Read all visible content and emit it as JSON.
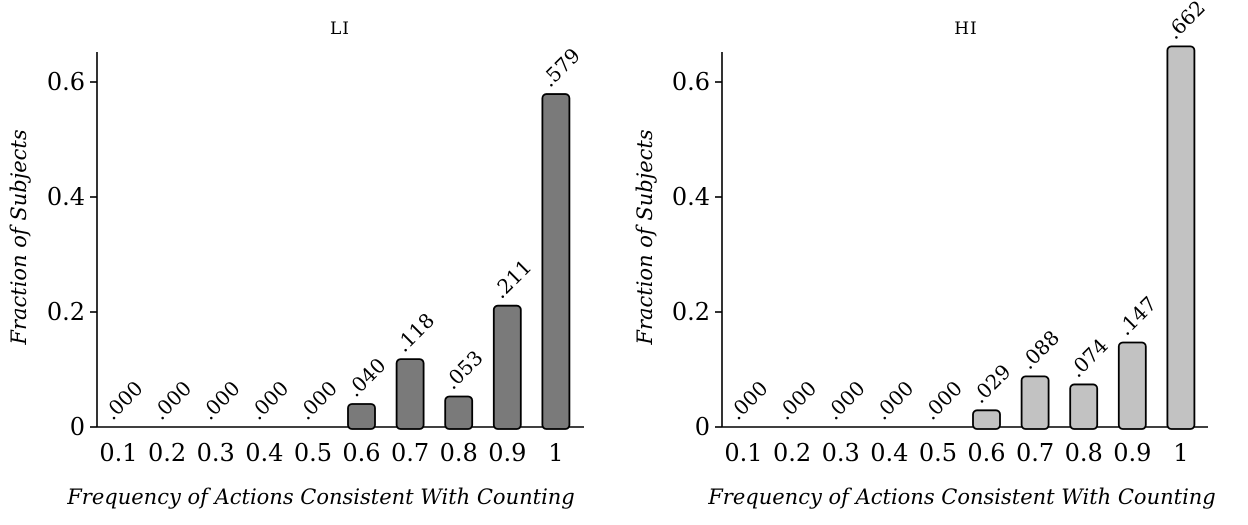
{
  "chart_data": [
    {
      "type": "bar",
      "title": "LI",
      "xlabel": "Frequency of Actions Consistent With Counting",
      "ylabel": "Fraction of Subjects",
      "categories": [
        "0.1",
        "0.2",
        "0.3",
        "0.4",
        "0.5",
        "0.6",
        "0.7",
        "0.8",
        "0.9",
        "1"
      ],
      "values": [
        0.0,
        0.0,
        0.0,
        0.0,
        0.0,
        0.04,
        0.118,
        0.053,
        0.211,
        0.579
      ],
      "value_labels": [
        ".000",
        ".000",
        ".000",
        ".000",
        ".000",
        ".040",
        ".118",
        ".053",
        ".211",
        ".579"
      ],
      "yticks": [
        0,
        0.2,
        0.4,
        0.6
      ],
      "ytick_labels": [
        "0",
        "0.2",
        "0.4",
        "0.6"
      ],
      "ylim": [
        0,
        0.65
      ],
      "bar_color": "#7a7a7a",
      "grid": false
    },
    {
      "type": "bar",
      "title": "HI",
      "xlabel": "Frequency of Actions Consistent With Counting",
      "ylabel": "Fraction of Subjects",
      "categories": [
        "0.1",
        "0.2",
        "0.3",
        "0.4",
        "0.5",
        "0.6",
        "0.7",
        "0.8",
        "0.9",
        "1"
      ],
      "values": [
        0.0,
        0.0,
        0.0,
        0.0,
        0.0,
        0.029,
        0.088,
        0.074,
        0.147,
        0.662
      ],
      "value_labels": [
        ".000",
        ".000",
        ".000",
        ".000",
        ".000",
        ".029",
        ".088",
        ".074",
        ".147",
        ".662"
      ],
      "yticks": [
        0,
        0.2,
        0.4,
        0.6
      ],
      "ytick_labels": [
        "0",
        "0.2",
        "0.4",
        "0.6"
      ],
      "ylim": [
        0,
        0.65
      ],
      "bar_color": "#c2c2c2",
      "grid": false
    }
  ]
}
